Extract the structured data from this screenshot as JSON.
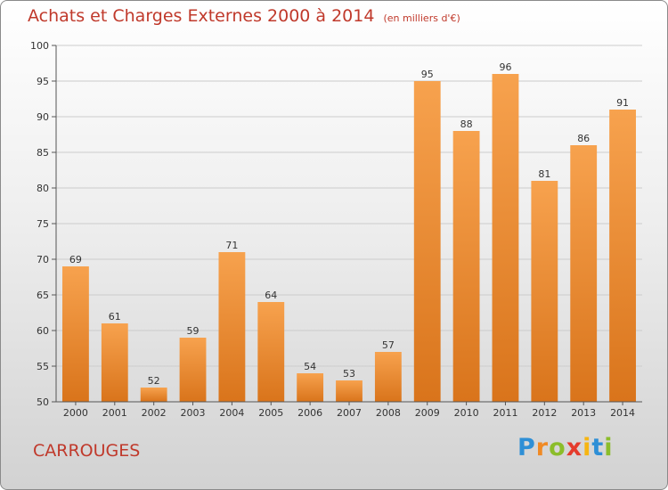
{
  "header": {
    "title": "Achats et Charges Externes 2000 à 2014",
    "subtitle": "(en milliers d'€)"
  },
  "footer": {
    "place": "CARROUGES",
    "logo_text": "Proxiti"
  },
  "colors": {
    "bar_light": "#f7a24e",
    "bar_dark": "#d9741b",
    "title": "#c0392b",
    "grid": "#cccccc"
  },
  "chart_data": {
    "type": "bar",
    "title": "Achats et Charges Externes 2000 à 2014",
    "subtitle": "(en milliers d'€)",
    "xlabel": "",
    "ylabel": "",
    "categories": [
      "2000",
      "2001",
      "2002",
      "2003",
      "2004",
      "2005",
      "2006",
      "2007",
      "2008",
      "2009",
      "2010",
      "2011",
      "2012",
      "2013",
      "2014"
    ],
    "values": [
      69,
      61,
      52,
      59,
      71,
      64,
      54,
      53,
      57,
      95,
      88,
      96,
      81,
      86,
      91
    ],
    "ylim": [
      50,
      100
    ],
    "yticks": [
      50,
      55,
      60,
      65,
      70,
      75,
      80,
      85,
      90,
      95,
      100
    ],
    "grid": true,
    "legend": "none"
  }
}
